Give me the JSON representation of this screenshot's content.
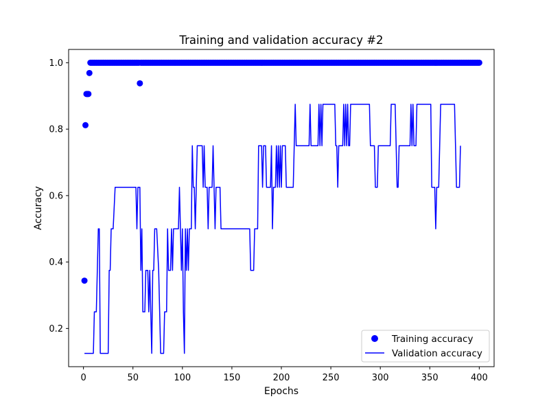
{
  "chart_data": {
    "type": "line",
    "title": "Training and validation accuracy #2",
    "xlabel": "Epochs",
    "ylabel": "Accuracy",
    "xlim": [
      -15,
      415
    ],
    "ylim": [
      0.085,
      1.04
    ],
    "xticks": [
      0,
      50,
      100,
      150,
      200,
      250,
      300,
      350,
      400
    ],
    "xtick_labels": [
      "0",
      "50",
      "100",
      "150",
      "200",
      "250",
      "300",
      "350",
      "400"
    ],
    "yticks": [
      0.2,
      0.4,
      0.6,
      0.8,
      1.0
    ],
    "ytick_labels": [
      "0.2",
      "0.4",
      "0.6",
      "0.8",
      "1.0"
    ],
    "grid": false,
    "legend_position": "bottom-right",
    "series": [
      {
        "name": "Training accuracy",
        "style": "markers",
        "color": "#0000ff",
        "points": [
          [
            1,
            0.344
          ],
          [
            2,
            0.812
          ],
          [
            3,
            0.906
          ],
          [
            4,
            0.906
          ],
          [
            5,
            0.906
          ],
          [
            6,
            0.969
          ],
          [
            57,
            0.938
          ]
        ],
        "constant": {
          "value": 1.0,
          "from": 7,
          "to": 400,
          "exclude": [
            57
          ]
        }
      },
      {
        "name": "Validation accuracy",
        "style": "line",
        "color": "#0000ff",
        "points": [
          [
            1,
            0.125
          ],
          [
            10,
            0.125
          ],
          [
            11,
            0.25
          ],
          [
            13,
            0.25
          ],
          [
            14,
            0.375
          ],
          [
            15,
            0.5
          ],
          [
            16,
            0.5
          ],
          [
            17,
            0.125
          ],
          [
            25,
            0.125
          ],
          [
            26,
            0.375
          ],
          [
            27,
            0.375
          ],
          [
            28,
            0.5
          ],
          [
            30,
            0.5
          ],
          [
            32,
            0.625
          ],
          [
            53,
            0.625
          ],
          [
            54,
            0.5
          ],
          [
            55,
            0.625
          ],
          [
            57,
            0.625
          ],
          [
            58,
            0.375
          ],
          [
            59,
            0.5
          ],
          [
            60,
            0.25
          ],
          [
            62,
            0.25
          ],
          [
            63,
            0.375
          ],
          [
            65,
            0.375
          ],
          [
            66,
            0.25
          ],
          [
            67,
            0.375
          ],
          [
            68,
            0.25
          ],
          [
            69,
            0.125
          ],
          [
            70,
            0.375
          ],
          [
            71,
            0.375
          ],
          [
            72,
            0.5
          ],
          [
            74,
            0.5
          ],
          [
            76,
            0.375
          ],
          [
            77,
            0.25
          ],
          [
            78,
            0.125
          ],
          [
            81,
            0.125
          ],
          [
            82,
            0.25
          ],
          [
            84,
            0.25
          ],
          [
            85,
            0.5
          ],
          [
            86,
            0.375
          ],
          [
            88,
            0.375
          ],
          [
            89,
            0.5
          ],
          [
            90,
            0.375
          ],
          [
            91,
            0.5
          ],
          [
            96,
            0.5
          ],
          [
            97,
            0.625
          ],
          [
            98,
            0.5
          ],
          [
            99,
            0.375
          ],
          [
            100,
            0.5
          ],
          [
            101,
            0.25
          ],
          [
            102,
            0.125
          ],
          [
            103,
            0.5
          ],
          [
            104,
            0.375
          ],
          [
            105,
            0.5
          ],
          [
            106,
            0.375
          ],
          [
            107,
            0.5
          ],
          [
            109,
            0.5
          ],
          [
            110,
            0.75
          ],
          [
            111,
            0.625
          ],
          [
            112,
            0.625
          ],
          [
            113,
            0.5
          ],
          [
            114,
            0.625
          ],
          [
            115,
            0.75
          ],
          [
            120,
            0.75
          ],
          [
            121,
            0.625
          ],
          [
            122,
            0.75
          ],
          [
            123,
            0.625
          ],
          [
            125,
            0.625
          ],
          [
            126,
            0.5
          ],
          [
            127,
            0.625
          ],
          [
            130,
            0.625
          ],
          [
            131,
            0.75
          ],
          [
            132,
            0.625
          ],
          [
            133,
            0.5
          ],
          [
            134,
            0.625
          ],
          [
            138,
            0.625
          ],
          [
            139,
            0.5
          ],
          [
            168,
            0.5
          ],
          [
            169,
            0.375
          ],
          [
            172,
            0.375
          ],
          [
            173,
            0.5
          ],
          [
            176,
            0.5
          ],
          [
            177,
            0.75
          ],
          [
            180,
            0.75
          ],
          [
            181,
            0.625
          ],
          [
            182,
            0.75
          ],
          [
            184,
            0.75
          ],
          [
            185,
            0.625
          ],
          [
            189,
            0.625
          ],
          [
            190,
            0.75
          ],
          [
            191,
            0.5
          ],
          [
            192,
            0.625
          ],
          [
            194,
            0.625
          ],
          [
            195,
            0.75
          ],
          [
            196,
            0.625
          ],
          [
            197,
            0.75
          ],
          [
            198,
            0.625
          ],
          [
            199,
            0.75
          ],
          [
            200,
            0.625
          ],
          [
            201,
            0.75
          ],
          [
            204,
            0.75
          ],
          [
            205,
            0.625
          ],
          [
            212,
            0.625
          ],
          [
            213,
            0.75
          ],
          [
            214,
            0.875
          ],
          [
            215,
            0.75
          ],
          [
            228,
            0.75
          ],
          [
            229,
            0.875
          ],
          [
            230,
            0.75
          ],
          [
            237,
            0.75
          ],
          [
            238,
            0.875
          ],
          [
            239,
            0.75
          ],
          [
            240,
            0.875
          ],
          [
            241,
            0.75
          ],
          [
            242,
            0.875
          ],
          [
            254,
            0.875
          ],
          [
            255,
            0.75
          ],
          [
            256,
            0.75
          ],
          [
            257,
            0.625
          ],
          [
            258,
            0.75
          ],
          [
            262,
            0.75
          ],
          [
            263,
            0.875
          ],
          [
            264,
            0.75
          ],
          [
            265,
            0.875
          ],
          [
            266,
            0.75
          ],
          [
            267,
            0.875
          ],
          [
            268,
            0.75
          ],
          [
            269,
            0.75
          ],
          [
            270,
            0.875
          ],
          [
            289,
            0.875
          ],
          [
            290,
            0.75
          ],
          [
            294,
            0.75
          ],
          [
            295,
            0.625
          ],
          [
            297,
            0.625
          ],
          [
            298,
            0.75
          ],
          [
            310,
            0.75
          ],
          [
            311,
            0.875
          ],
          [
            315,
            0.875
          ],
          [
            316,
            0.75
          ],
          [
            317,
            0.625
          ],
          [
            318,
            0.625
          ],
          [
            319,
            0.75
          ],
          [
            330,
            0.75
          ],
          [
            331,
            0.875
          ],
          [
            332,
            0.75
          ],
          [
            333,
            0.875
          ],
          [
            334,
            0.75
          ],
          [
            336,
            0.75
          ],
          [
            337,
            0.875
          ],
          [
            351,
            0.875
          ],
          [
            352,
            0.625
          ],
          [
            355,
            0.625
          ],
          [
            356,
            0.5
          ],
          [
            357,
            0.625
          ],
          [
            359,
            0.625
          ],
          [
            360,
            0.75
          ],
          [
            361,
            0.875
          ],
          [
            375,
            0.875
          ],
          [
            376,
            0.75
          ],
          [
            377,
            0.625
          ],
          [
            380,
            0.625
          ],
          [
            381,
            0.75
          ]
        ]
      }
    ]
  }
}
